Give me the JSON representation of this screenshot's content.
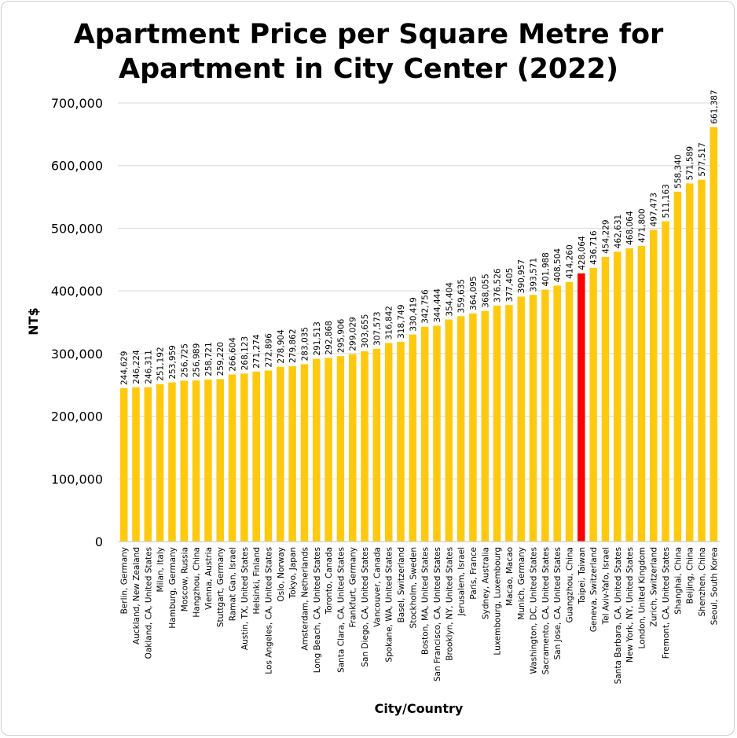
{
  "chart_data": {
    "type": "bar",
    "title_lines": [
      "Apartment Price per Square Metre for",
      "Apartment in City Center (2022)"
    ],
    "xlabel": "City/Country",
    "ylabel": "NT$",
    "ylim": [
      0,
      700000
    ],
    "yticks": [
      0,
      100000,
      200000,
      300000,
      400000,
      500000,
      600000,
      700000
    ],
    "ytick_labels": [
      "0",
      "100,000",
      "200,000",
      "300,000",
      "400,000",
      "500,000",
      "600,000",
      "700,000"
    ],
    "grid": true,
    "bar_color": "#FFC90E",
    "highlight_color": "#FF0000",
    "highlight_category": "Taipei, Taiwan",
    "categories": [
      "Berlin, Germany",
      "Auckland, New Zealand",
      "Oakland, CA, United States",
      "Milan, Italy",
      "Hamburg, Germany",
      "Moscow, Russia",
      "Hangzhou, China",
      "Vienna, Austria",
      "Stuttgart, Germany",
      "Ramat Gan, Israel",
      "Austin, TX, United States",
      "Helsinki, Finland",
      "Los Angeles, CA, United States",
      "Oslo, Norway",
      "Tokyo, Japan",
      "Amsterdam, Netherlands",
      "Long Beach, CA, United States",
      "Toronto, Canada",
      "Santa Clara, CA, United States",
      "Frankfurt, Germany",
      "San Diego, CA, United States",
      "Vancouver, Canada",
      "Spokane, WA, United States",
      "Basel, Switzerland",
      "Stockholm, Sweden",
      "Boston, MA, United States",
      "San Francisco, CA, United States",
      "Brooklyn, NY, United States",
      "Jerusalem, Israel",
      "Paris, France",
      "Sydney, Australia",
      "Luxembourg, Luxembourg",
      "Macao, Macao",
      "Munich, Germany",
      "Washington, DC, United States",
      "Sacramento, CA, United States",
      "San Jose, CA, United States",
      "Guangzhou, China",
      "Taipei, Taiwan",
      "Geneva, Switzerland",
      "Tel Aviv-Yafo, Israel",
      "Santa Barbara, CA, United States",
      "New York, NY, United States",
      "London, United Kingdom",
      "Zurich, Switzerland",
      "Fremont, CA, United States",
      "Shanghai, China",
      "Beijing, China",
      "Shenzhen, China",
      "Seoul, South Korea"
    ],
    "values": [
      244629,
      246224,
      246311,
      251192,
      253959,
      256725,
      256989,
      258721,
      259220,
      266604,
      268123,
      271274,
      272896,
      278904,
      279862,
      283035,
      291513,
      292868,
      295906,
      299029,
      303655,
      307573,
      316842,
      318749,
      330419,
      342756,
      344444,
      354404,
      359635,
      364095,
      368055,
      376526,
      377405,
      390957,
      393571,
      401988,
      408504,
      414260,
      428064,
      436716,
      454229,
      462631,
      468064,
      471800,
      497473,
      511163,
      558340,
      571589,
      577517,
      661387
    ],
    "value_labels": [
      "244,629",
      "246,224",
      "246,311",
      "251,192",
      "253,959",
      "256,725",
      "256,989",
      "258,721",
      "259,220",
      "266,604",
      "268,123",
      "271,274",
      "272,896",
      "278,904",
      "279,862",
      "283,035",
      "291,513",
      "292,868",
      "295,906",
      "299,029",
      "303,655",
      "307,573",
      "316,842",
      "318,749",
      "330,419",
      "342,756",
      "344,444",
      "354,404",
      "359,635",
      "364,095",
      "368,055",
      "376,526",
      "377,405",
      "390,957",
      "393,571",
      "401,988",
      "408,504",
      "414,260",
      "428,064",
      "436,716",
      "454,229",
      "462,631",
      "468,064",
      "471,800",
      "497,473",
      "511,163",
      "558,340",
      "571,589",
      "577,517",
      "661,387"
    ]
  }
}
